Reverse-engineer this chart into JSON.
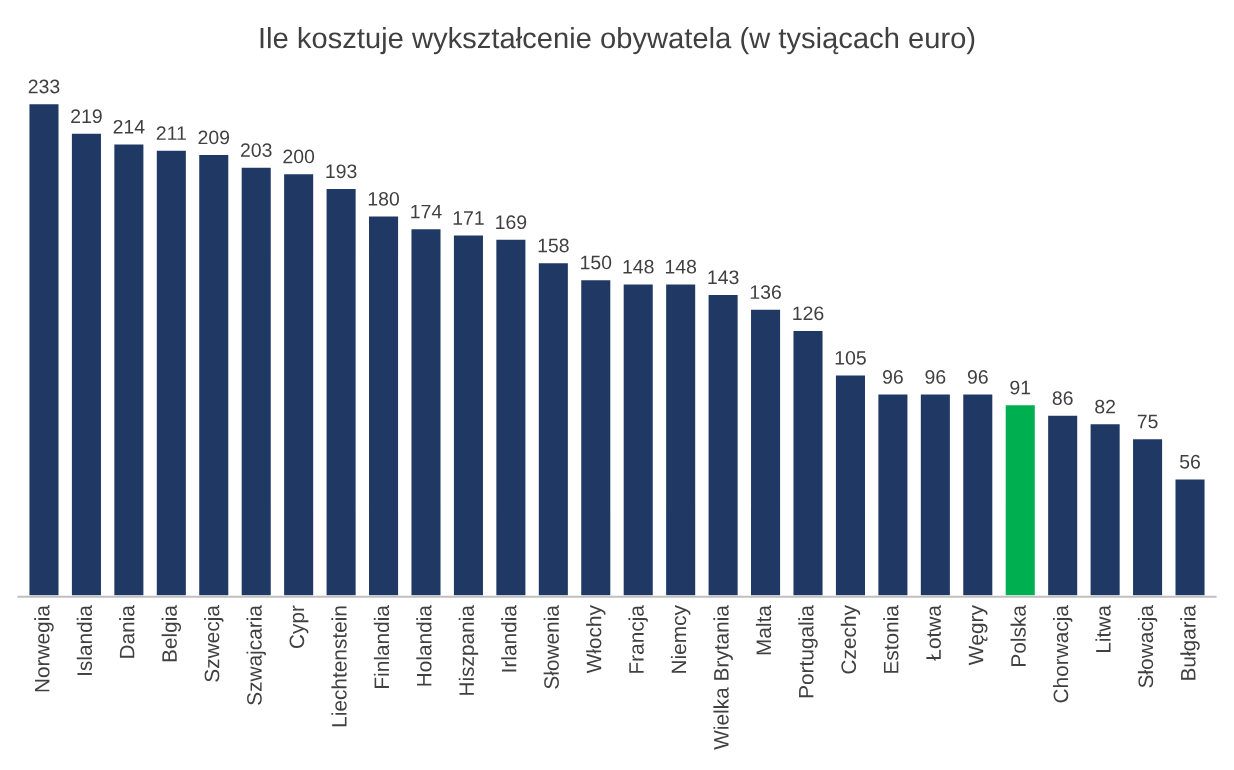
{
  "chart_data": {
    "type": "bar",
    "title": "Ile kosztuje wykształcenie obywatela (w tysiącach euro)",
    "categories": [
      "Norwegia",
      "Islandia",
      "Dania",
      "Belgia",
      "Szwecja",
      "Szwajcaria",
      "Cypr",
      "Liechtenstein",
      "Finlandia",
      "Holandia",
      "Hiszpania",
      "Irlandia",
      "Słowenia",
      "Włochy",
      "Francja",
      "Niemcy",
      "Wielka Brytania",
      "Malta",
      "Portugalia",
      "Czechy",
      "Estonia",
      "Łotwa",
      "Węgry",
      "Polska",
      "Chorwacja",
      "Litwa",
      "Słowacja",
      "Bułgaria"
    ],
    "values": [
      233,
      219,
      214,
      211,
      209,
      203,
      200,
      193,
      180,
      174,
      171,
      169,
      158,
      150,
      148,
      148,
      143,
      136,
      126,
      105,
      96,
      96,
      96,
      91,
      86,
      82,
      75,
      56
    ],
    "colors": [
      "#203864",
      "#203864",
      "#203864",
      "#203864",
      "#203864",
      "#203864",
      "#203864",
      "#203864",
      "#203864",
      "#203864",
      "#203864",
      "#203864",
      "#203864",
      "#203864",
      "#203864",
      "#203864",
      "#203864",
      "#203864",
      "#203864",
      "#203864",
      "#203864",
      "#203864",
      "#203864",
      "#00b050",
      "#203864",
      "#203864",
      "#203864",
      "#203864"
    ],
    "data_labels": true,
    "tick_labels": "x",
    "grid": false,
    "legend": false
  }
}
